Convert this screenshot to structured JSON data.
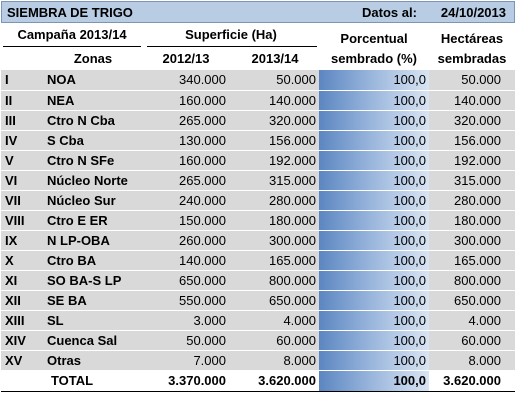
{
  "header": {
    "title": "SIEMBRA DE TRIGO",
    "date_label": "Datos al:",
    "date_value": "24/10/2013"
  },
  "columns": {
    "campaign": "Campaña 2013/14",
    "zones": "Zonas",
    "surface": "Superficie (Ha)",
    "year1": "2012/13",
    "year2": "2013/14",
    "pct_line1": "Porcentual",
    "pct_line2": "sembrado (%)",
    "ha_line1": "Hectáreas",
    "ha_line2": "sembradas"
  },
  "rows": [
    {
      "num": "I",
      "zone": "NOA",
      "y1": "340.000",
      "y2": "50.000",
      "pct": "100,0",
      "ha": "50.000"
    },
    {
      "num": "II",
      "zone": "NEA",
      "y1": "160.000",
      "y2": "140.000",
      "pct": "100,0",
      "ha": "140.000"
    },
    {
      "num": "III",
      "zone": "Ctro N Cba",
      "y1": "265.000",
      "y2": "320.000",
      "pct": "100,0",
      "ha": "320.000"
    },
    {
      "num": "IV",
      "zone": "S Cba",
      "y1": "130.000",
      "y2": "156.000",
      "pct": "100,0",
      "ha": "156.000"
    },
    {
      "num": "V",
      "zone": "Ctro N SFe",
      "y1": "160.000",
      "y2": "192.000",
      "pct": "100,0",
      "ha": "192.000"
    },
    {
      "num": "VI",
      "zone": "Núcleo Norte",
      "y1": "265.000",
      "y2": "315.000",
      "pct": "100,0",
      "ha": "315.000"
    },
    {
      "num": "VII",
      "zone": "Núcleo Sur",
      "y1": "240.000",
      "y2": "280.000",
      "pct": "100,0",
      "ha": "280.000"
    },
    {
      "num": "VIII",
      "zone": "Ctro E ER",
      "y1": "150.000",
      "y2": "180.000",
      "pct": "100,0",
      "ha": "180.000"
    },
    {
      "num": "IX",
      "zone": "N LP-OBA",
      "y1": "260.000",
      "y2": "300.000",
      "pct": "100,0",
      "ha": "300.000"
    },
    {
      "num": "X",
      "zone": "Ctro BA",
      "y1": "140.000",
      "y2": "165.000",
      "pct": "100,0",
      "ha": "165.000"
    },
    {
      "num": "XI",
      "zone": "SO BA-S LP",
      "y1": "650.000",
      "y2": "800.000",
      "pct": "100,0",
      "ha": "800.000"
    },
    {
      "num": "XII",
      "zone": "SE BA",
      "y1": "550.000",
      "y2": "650.000",
      "pct": "100,0",
      "ha": "650.000"
    },
    {
      "num": "XIII",
      "zone": "SL",
      "y1": "3.000",
      "y2": "4.000",
      "pct": "100,0",
      "ha": "4.000"
    },
    {
      "num": "XIV",
      "zone": "Cuenca Sal",
      "y1": "50.000",
      "y2": "60.000",
      "pct": "100,0",
      "ha": "60.000"
    },
    {
      "num": "XV",
      "zone": "Otras",
      "y1": "7.000",
      "y2": "8.000",
      "pct": "100,0",
      "ha": "8.000"
    }
  ],
  "total": {
    "label": "TOTAL",
    "y1": "3.370.000",
    "y2": "3.620.000",
    "pct": "100,0",
    "ha": "3.620.000"
  },
  "colors": {
    "title_bg": "#b8cce4",
    "row_bg": "#d9d9d9",
    "bar_dark": "#5c86c2",
    "bar_light": "#d9e4f2"
  }
}
